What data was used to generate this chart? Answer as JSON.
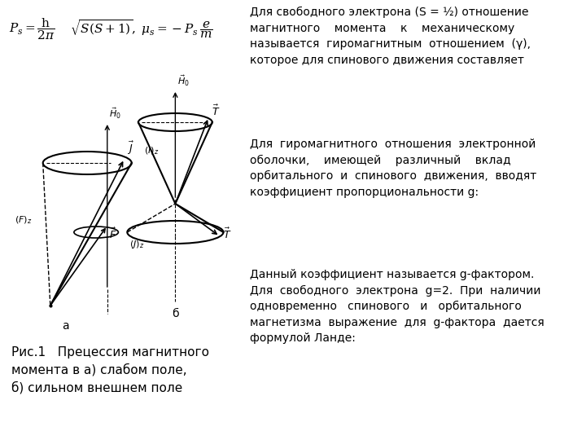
{
  "bg_color": "#ffffff",
  "text_block1": "Для свободного электрона (S = ½) отношение\nмагнитного    момента    к    механическому\nназывается  гиромагнитным  отношением  (γ),\nкоторое для спинового движения составляет",
  "text_block2": "Для  гиромагнитного  отношения  электронной\nоболочки,    имеющей    различный    вклад\nорбитального  и  спинового  движения,  вводят\nкоэффициент пропорциональности g:",
  "text_block3": "Данный коэффициент называется g-фактором.\nДля  свободного  электрона  g=2.  При  наличии\nодновременно   спинового   и   орбитального\nмагнетизма  выражение  для  g-фактора  дается\nформулой Ланде:",
  "caption": "Рис.1   Прецессия магнитного\nмомента в а) слабом поле,\nб) сильном внешнем поле",
  "text_fontsize": 10,
  "caption_fontsize": 11
}
